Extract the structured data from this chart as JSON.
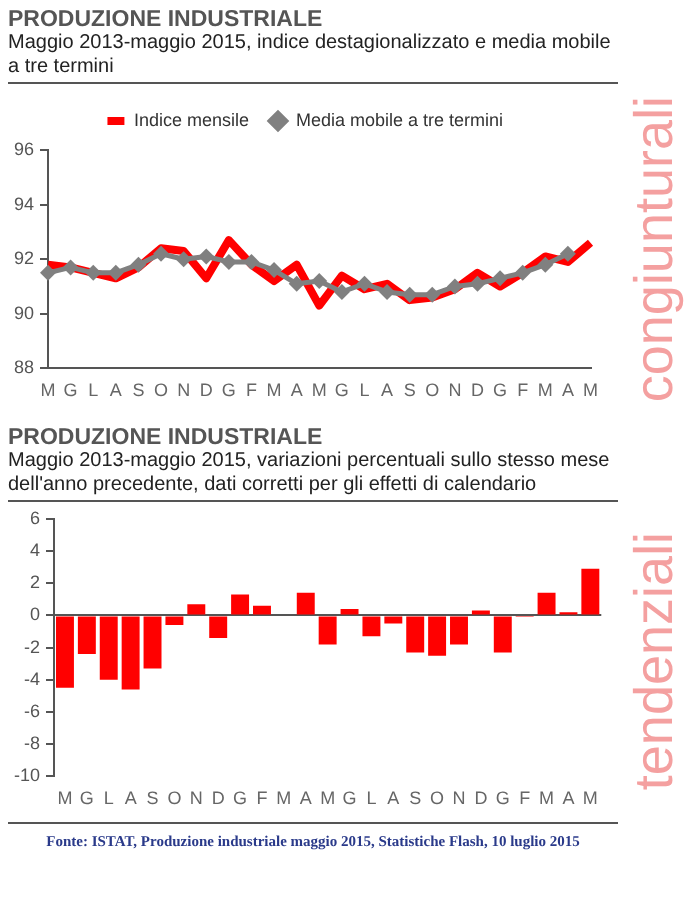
{
  "chart_data": [
    {
      "type": "line",
      "title": "PRODUZIONE INDUSTRIALE",
      "subtitle": "Maggio 2013-maggio 2015, indice destagionalizzato e media mobile a tre termini",
      "categories": [
        "M",
        "G",
        "L",
        "A",
        "S",
        "O",
        "N",
        "D",
        "G",
        "F",
        "M",
        "A",
        "M",
        "G",
        "L",
        "A",
        "S",
        "O",
        "N",
        "D",
        "G",
        "F",
        "M",
        "A",
        "M"
      ],
      "series": [
        {
          "name": "Indice mensile",
          "color": "#ff0000",
          "marker": "none",
          "values": [
            91.8,
            91.7,
            91.5,
            91.3,
            91.7,
            92.4,
            92.3,
            91.3,
            92.7,
            91.8,
            91.2,
            91.8,
            90.3,
            91.4,
            90.9,
            91.1,
            90.5,
            90.6,
            90.9,
            91.5,
            91.0,
            91.5,
            92.1,
            91.9,
            92.6
          ]
        },
        {
          "name": "Media mobile a tre termini",
          "color": "#808080",
          "marker": "diamond",
          "values": [
            91.5,
            91.7,
            91.5,
            91.5,
            91.8,
            92.2,
            92.0,
            92.1,
            91.9,
            91.9,
            91.6,
            91.1,
            91.2,
            90.8,
            91.1,
            90.8,
            90.7,
            90.7,
            91.0,
            91.1,
            91.3,
            91.5,
            91.8,
            92.2,
            null
          ]
        }
      ],
      "ylim": [
        88,
        96
      ],
      "yticks": [
        88,
        90,
        92,
        94,
        96
      ],
      "legend": "top",
      "annotations": [
        "congiunturali"
      ]
    },
    {
      "type": "bar",
      "title": "PRODUZIONE INDUSTRIALE",
      "subtitle": "Maggio 2013-maggio 2015, variazioni percentuali sullo stesso mese dell'anno precedente, dati corretti per gli effetti di calendario",
      "categories": [
        "M",
        "G",
        "L",
        "A",
        "S",
        "O",
        "N",
        "D",
        "G",
        "F",
        "M",
        "A",
        "M",
        "G",
        "L",
        "A",
        "S",
        "O",
        "N",
        "D",
        "G",
        "F",
        "M",
        "A",
        "M"
      ],
      "values": [
        -4.5,
        -2.4,
        -4.0,
        -4.6,
        -3.3,
        -0.6,
        0.7,
        -1.4,
        1.3,
        0.6,
        0,
        1.4,
        -1.8,
        0.4,
        -1.3,
        -0.5,
        -2.3,
        -2.5,
        -1.8,
        0.3,
        -2.3,
        -0.1,
        1.4,
        0.2,
        2.9
      ],
      "color": "#ff0000",
      "ylim": [
        -10,
        6
      ],
      "yticks": [
        -10,
        -8,
        -6,
        -4,
        -2,
        0,
        2,
        4,
        6
      ],
      "annotations": [
        "tendenziali",
        "Fonte: ISTAT, Produzione industriale maggio 2015, Statistiche Flash, 10 luglio 2015"
      ]
    }
  ]
}
